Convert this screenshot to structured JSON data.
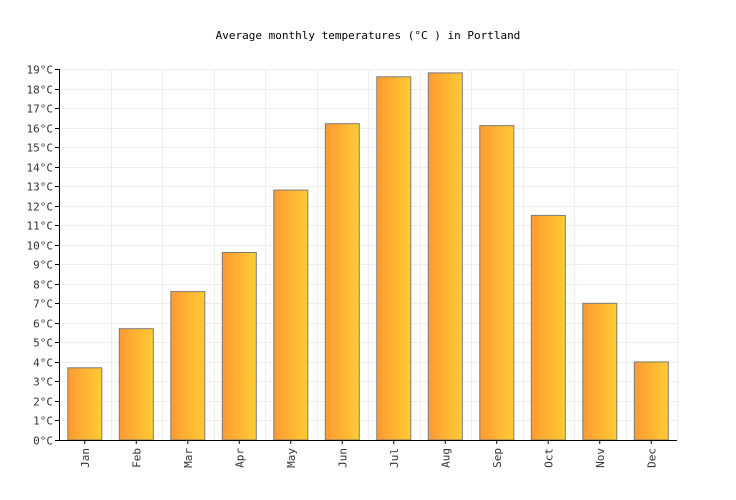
{
  "chart_data": {
    "type": "bar",
    "title": "Average monthly temperatures (°C ) in Portland",
    "categories": [
      "Jan",
      "Feb",
      "Mar",
      "Apr",
      "May",
      "Jun",
      "Jul",
      "Aug",
      "Sep",
      "Oct",
      "Nov",
      "Dec"
    ],
    "values": [
      3.7,
      5.7,
      7.6,
      9.6,
      12.8,
      16.2,
      18.6,
      18.8,
      16.1,
      11.5,
      7.0,
      4.0
    ],
    "ylim": [
      0,
      19
    ],
    "ytick_step": 1,
    "ytick_suffix": "°C",
    "xlabel": "",
    "ylabel": "",
    "grid": true,
    "colors": {
      "bar_left": "#ff9933",
      "bar_right": "#ffcc33",
      "bar_outline": "#7a7a7a",
      "grid": "#eeeeee"
    }
  }
}
